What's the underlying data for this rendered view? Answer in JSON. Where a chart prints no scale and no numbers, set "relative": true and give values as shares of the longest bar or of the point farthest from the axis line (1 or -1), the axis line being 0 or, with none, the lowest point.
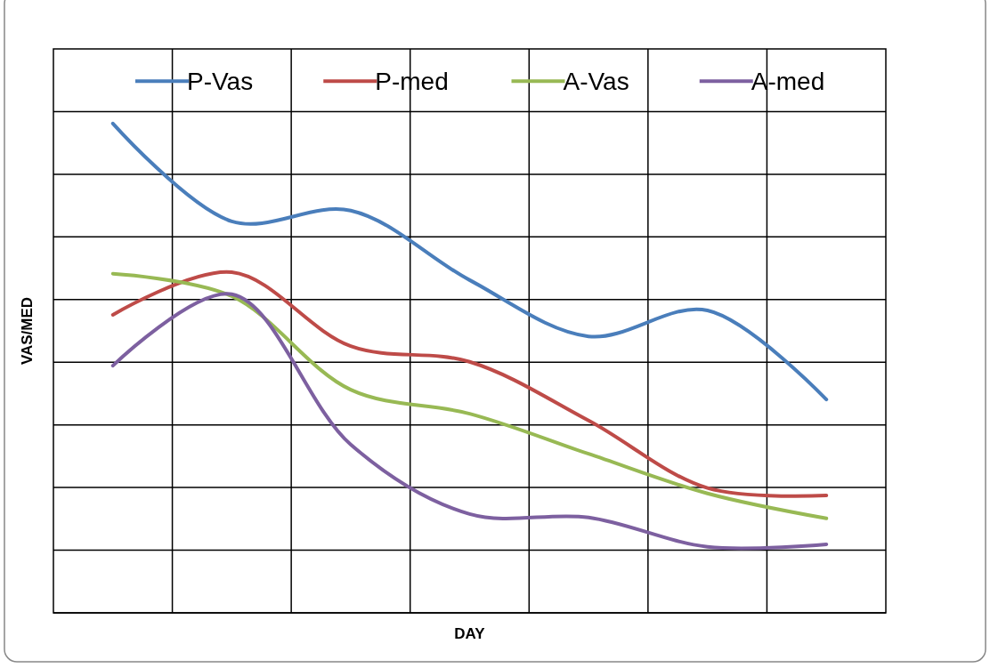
{
  "chart_data": {
    "type": "line",
    "relative": true,
    "xlabel": "DAY",
    "ylabel": "VAS/MED",
    "categories": [
      null,
      null,
      null,
      null,
      null,
      null,
      null
    ],
    "grid": true,
    "legend": "top",
    "marker": "none",
    "line_style": "solid",
    "series": [
      {
        "name": "P-Vas",
        "color": "#4a7ebb",
        "values": [
          1,
          0.8,
          0.822,
          0.68,
          0.565,
          0.618,
          0.436
        ]
      },
      {
        "name": "P-med",
        "color": "#be4b48",
        "values": [
          0.609,
          0.696,
          0.545,
          0.513,
          0.393,
          0.255,
          0.24
        ]
      },
      {
        "name": "A-Vas",
        "color": "#98b954",
        "values": [
          0.693,
          0.647,
          0.456,
          0.407,
          0.325,
          0.244,
          0.193
        ]
      },
      {
        "name": "A-med",
        "color": "#7d60a0",
        "values": [
          0.505,
          0.651,
          0.344,
          0.202,
          0.195,
          0.135,
          0.14
        ]
      }
    ]
  }
}
